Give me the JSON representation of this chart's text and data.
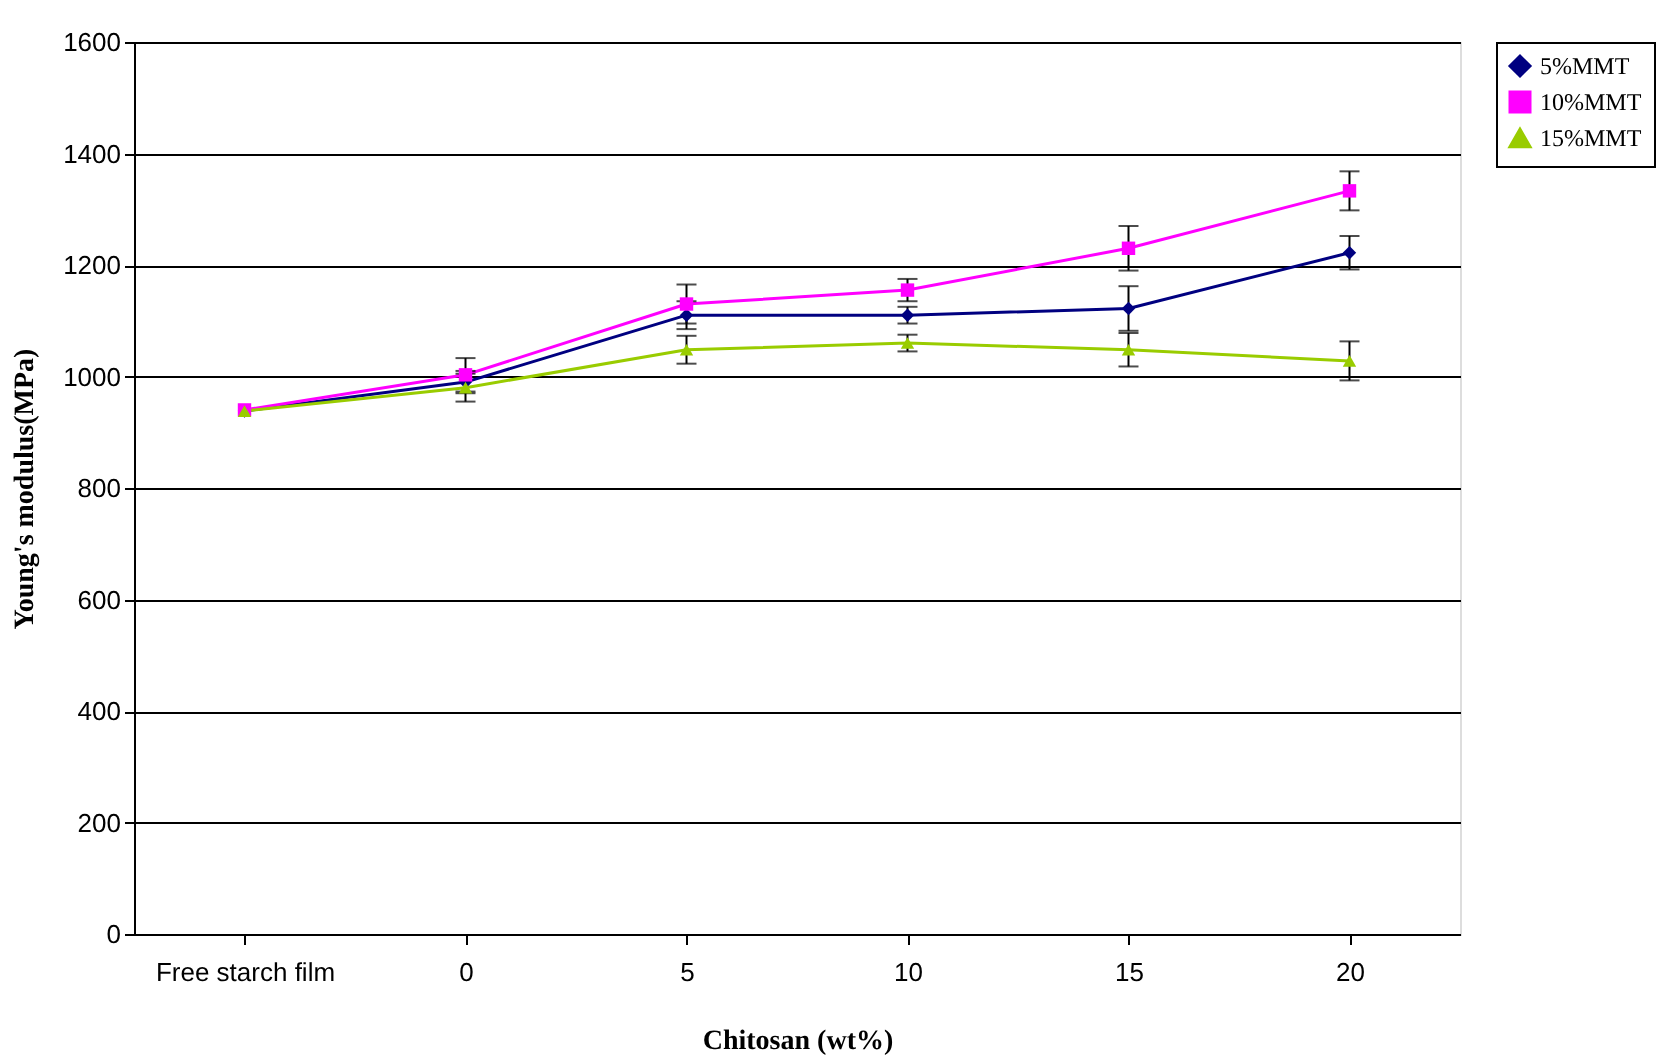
{
  "chart_data": {
    "type": "line",
    "xlabel": "Chitosan (wt%)",
    "ylabel": "Young's modulus(MPa)",
    "categories": [
      "Free starch film",
      "0",
      "5",
      "10",
      "15",
      "20"
    ],
    "series": [
      {
        "name": "5%MMT",
        "color": "#000080",
        "marker": "diamond",
        "values": [
          938,
          990,
          1110,
          1110,
          1122,
          1222
        ],
        "errors": [
          null,
          20,
          25,
          15,
          40,
          30
        ]
      },
      {
        "name": "10%MMT",
        "color": "#ff00ff",
        "marker": "square",
        "values": [
          940,
          1003,
          1130,
          1155,
          1230,
          1333
        ],
        "errors": [
          null,
          30,
          35,
          20,
          40,
          35
        ]
      },
      {
        "name": "15%MMT",
        "color": "#99cc00",
        "marker": "triangle",
        "values": [
          938,
          980,
          1048,
          1060,
          1048,
          1028
        ],
        "errors": [
          null,
          25,
          25,
          15,
          30,
          35
        ]
      }
    ],
    "ylim": [
      0,
      1600
    ],
    "yticks": [
      0,
      200,
      400,
      600,
      800,
      1000,
      1200,
      1400,
      1600
    ],
    "grid": "y",
    "legend": "right",
    "line_style": "solid"
  }
}
